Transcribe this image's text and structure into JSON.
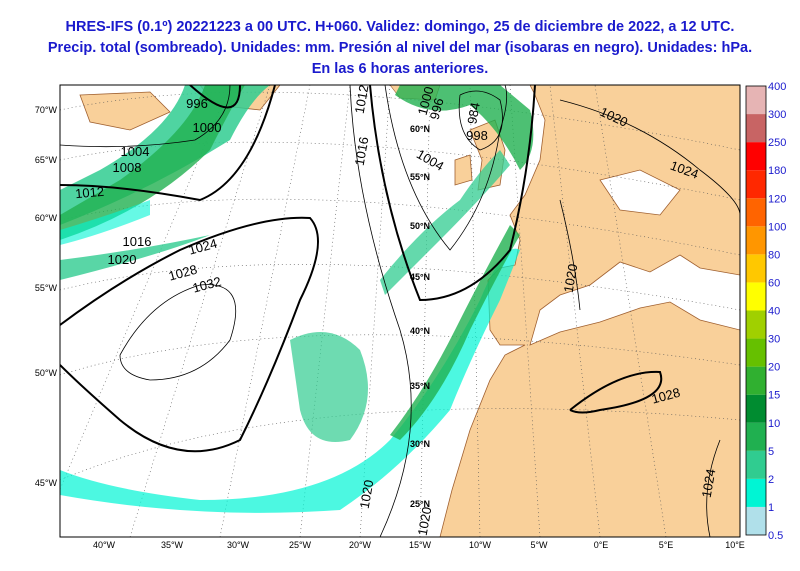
{
  "header": {
    "lines": [
      "HRES-IFS (0.1º) 20221223 a 00 UTC. H+060. Validez: domingo, 25 de diciembre de 2022, a 12 UTC.",
      "Precip. total (sombreado). Unidades: mm. Presión al nivel del mar (isobaras en negro). Unidades: hPa.",
      "En las 6 horas anteriores."
    ]
  },
  "map": {
    "left_labels": [
      "70°W",
      "65°W",
      "60°W",
      "55°W",
      "50°W",
      "45°W"
    ],
    "parallel_labels": [
      "60°N",
      "55°N",
      "50°N",
      "45°N",
      "40°N",
      "35°N",
      "30°N",
      "25°N"
    ],
    "meridian_labels": [
      "40°W",
      "35°W",
      "30°W",
      "25°W",
      "20°W",
      "15°W",
      "10°W",
      "5°W",
      "0°E",
      "5°E",
      "10°E"
    ],
    "isobar_labels": [
      "996",
      "1000",
      "1004",
      "1008",
      "1012",
      "1016",
      "1020",
      "1024",
      "1028",
      "1032",
      "1012",
      "1016",
      "1004",
      "1000",
      "996",
      "984",
      "998",
      "1020",
      "1024",
      "1020",
      "1028",
      "1024",
      "1020",
      "1020"
    ]
  },
  "colorbar": {
    "labels": [
      0.5,
      1,
      2,
      5,
      10,
      15,
      20,
      30,
      40,
      60,
      80,
      100,
      120,
      180,
      250,
      300,
      400
    ],
    "colors": [
      "#b0e0ea",
      "#00f5d4",
      "#30cc90",
      "#20b050",
      "#008c30",
      "#30b030",
      "#66c000",
      "#a0d000",
      "#ffff00",
      "#ffc800",
      "#ff9600",
      "#ff6400",
      "#ff2800",
      "#ff0000",
      "#c86464",
      "#e6b4b4",
      "#f5dcdc"
    ]
  }
}
